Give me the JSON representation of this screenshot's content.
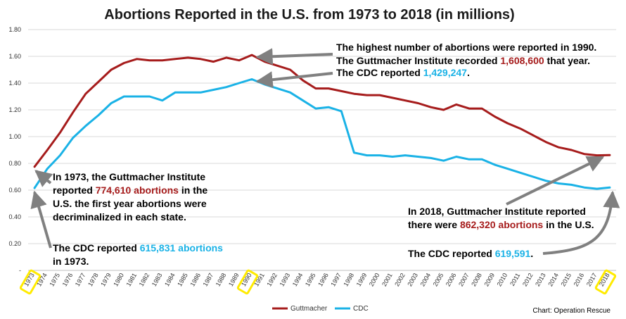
{
  "chart_data": {
    "type": "line",
    "title": "Abortions Reported in the U.S. from 1973 to 2018 (in millions)",
    "x": [
      "1973",
      "1974",
      "1975",
      "1976",
      "1977",
      "1978",
      "1979",
      "1980",
      "1981",
      "1982",
      "1983",
      "1984",
      "1985",
      "1986",
      "1987",
      "1988",
      "1989",
      "1990",
      "1991",
      "1992",
      "1993",
      "1994",
      "1995",
      "1996",
      "1997",
      "1998",
      "1999",
      "2000",
      "2001",
      "2002",
      "2003",
      "2004",
      "2005",
      "2006",
      "2007",
      "2008",
      "2009",
      "2010",
      "2011",
      "2012",
      "2013",
      "2014",
      "2015",
      "2016",
      "2017",
      "2018"
    ],
    "highlighted_x": [
      "1973",
      "1990",
      "2018"
    ],
    "ylim": [
      0,
      1.8
    ],
    "y_ticks": [
      "-",
      "0.20",
      "0.40",
      "0.60",
      "0.80",
      "1.00",
      "1.20",
      "1.40",
      "1.60",
      "1.80"
    ],
    "grid": true,
    "legend_position": "bottom",
    "series": [
      {
        "name": "Guttmacher",
        "color": "#a61c1c",
        "values": [
          0.775,
          0.9,
          1.03,
          1.18,
          1.32,
          1.41,
          1.5,
          1.55,
          1.58,
          1.57,
          1.57,
          1.58,
          1.59,
          1.58,
          1.56,
          1.59,
          1.57,
          1.61,
          1.56,
          1.53,
          1.5,
          1.42,
          1.36,
          1.36,
          1.34,
          1.32,
          1.31,
          1.31,
          1.29,
          1.27,
          1.25,
          1.22,
          1.2,
          1.24,
          1.21,
          1.21,
          1.15,
          1.1,
          1.06,
          1.01,
          0.96,
          0.92,
          0.9,
          0.87,
          0.86,
          0.862
        ]
      },
      {
        "name": "CDC",
        "color": "#1ab2e6",
        "values": [
          0.616,
          0.76,
          0.86,
          0.99,
          1.08,
          1.16,
          1.25,
          1.3,
          1.3,
          1.3,
          1.27,
          1.33,
          1.33,
          1.33,
          1.35,
          1.37,
          1.4,
          1.429,
          1.39,
          1.36,
          1.33,
          1.27,
          1.21,
          1.22,
          1.19,
          0.88,
          0.86,
          0.86,
          0.85,
          0.86,
          0.85,
          0.84,
          0.82,
          0.85,
          0.83,
          0.83,
          0.79,
          0.76,
          0.73,
          0.7,
          0.67,
          0.65,
          0.64,
          0.62,
          0.61,
          0.62
        ]
      }
    ],
    "source": "Chart: Operation Rescue",
    "annotations": [
      {
        "lines": [
          [
            {
              "t": "The highest number of abortions were reported in 1990."
            }
          ],
          [
            {
              "t": "The Guttmacher Institute recorded "
            },
            {
              "t": "1,608,600",
              "c": "red"
            },
            {
              "t": " that year."
            }
          ]
        ]
      },
      {
        "lines": [
          [
            {
              "t": "The CDC reported "
            },
            {
              "t": "1,429,247",
              "c": "blue"
            },
            {
              "t": "."
            }
          ]
        ]
      },
      {
        "lines": [
          [
            {
              "t": "In 1973, the Guttmacher Institute"
            }
          ],
          [
            {
              "t": "reported "
            },
            {
              "t": "774,610 abortions",
              "c": "red"
            },
            {
              "t": " in the"
            }
          ],
          [
            {
              "t": "U.S. the first year abortions were"
            }
          ],
          [
            {
              "t": "decriminalized in each state."
            }
          ]
        ]
      },
      {
        "lines": [
          [
            {
              "t": "The CDC reported "
            },
            {
              "t": "615,831 abortions",
              "c": "blue"
            }
          ],
          [
            {
              "t": "in 1973."
            }
          ]
        ]
      },
      {
        "lines": [
          [
            {
              "t": "In 2018, Guttmacher Institute reported"
            }
          ],
          [
            {
              "t": "there were "
            },
            {
              "t": "862,320 abortions",
              "c": "red"
            },
            {
              "t": " in the U.S."
            }
          ]
        ]
      },
      {
        "lines": [
          [
            {
              "t": "The CDC reported "
            },
            {
              "t": "619,591",
              "c": "blue"
            },
            {
              "t": "."
            }
          ]
        ]
      }
    ]
  }
}
